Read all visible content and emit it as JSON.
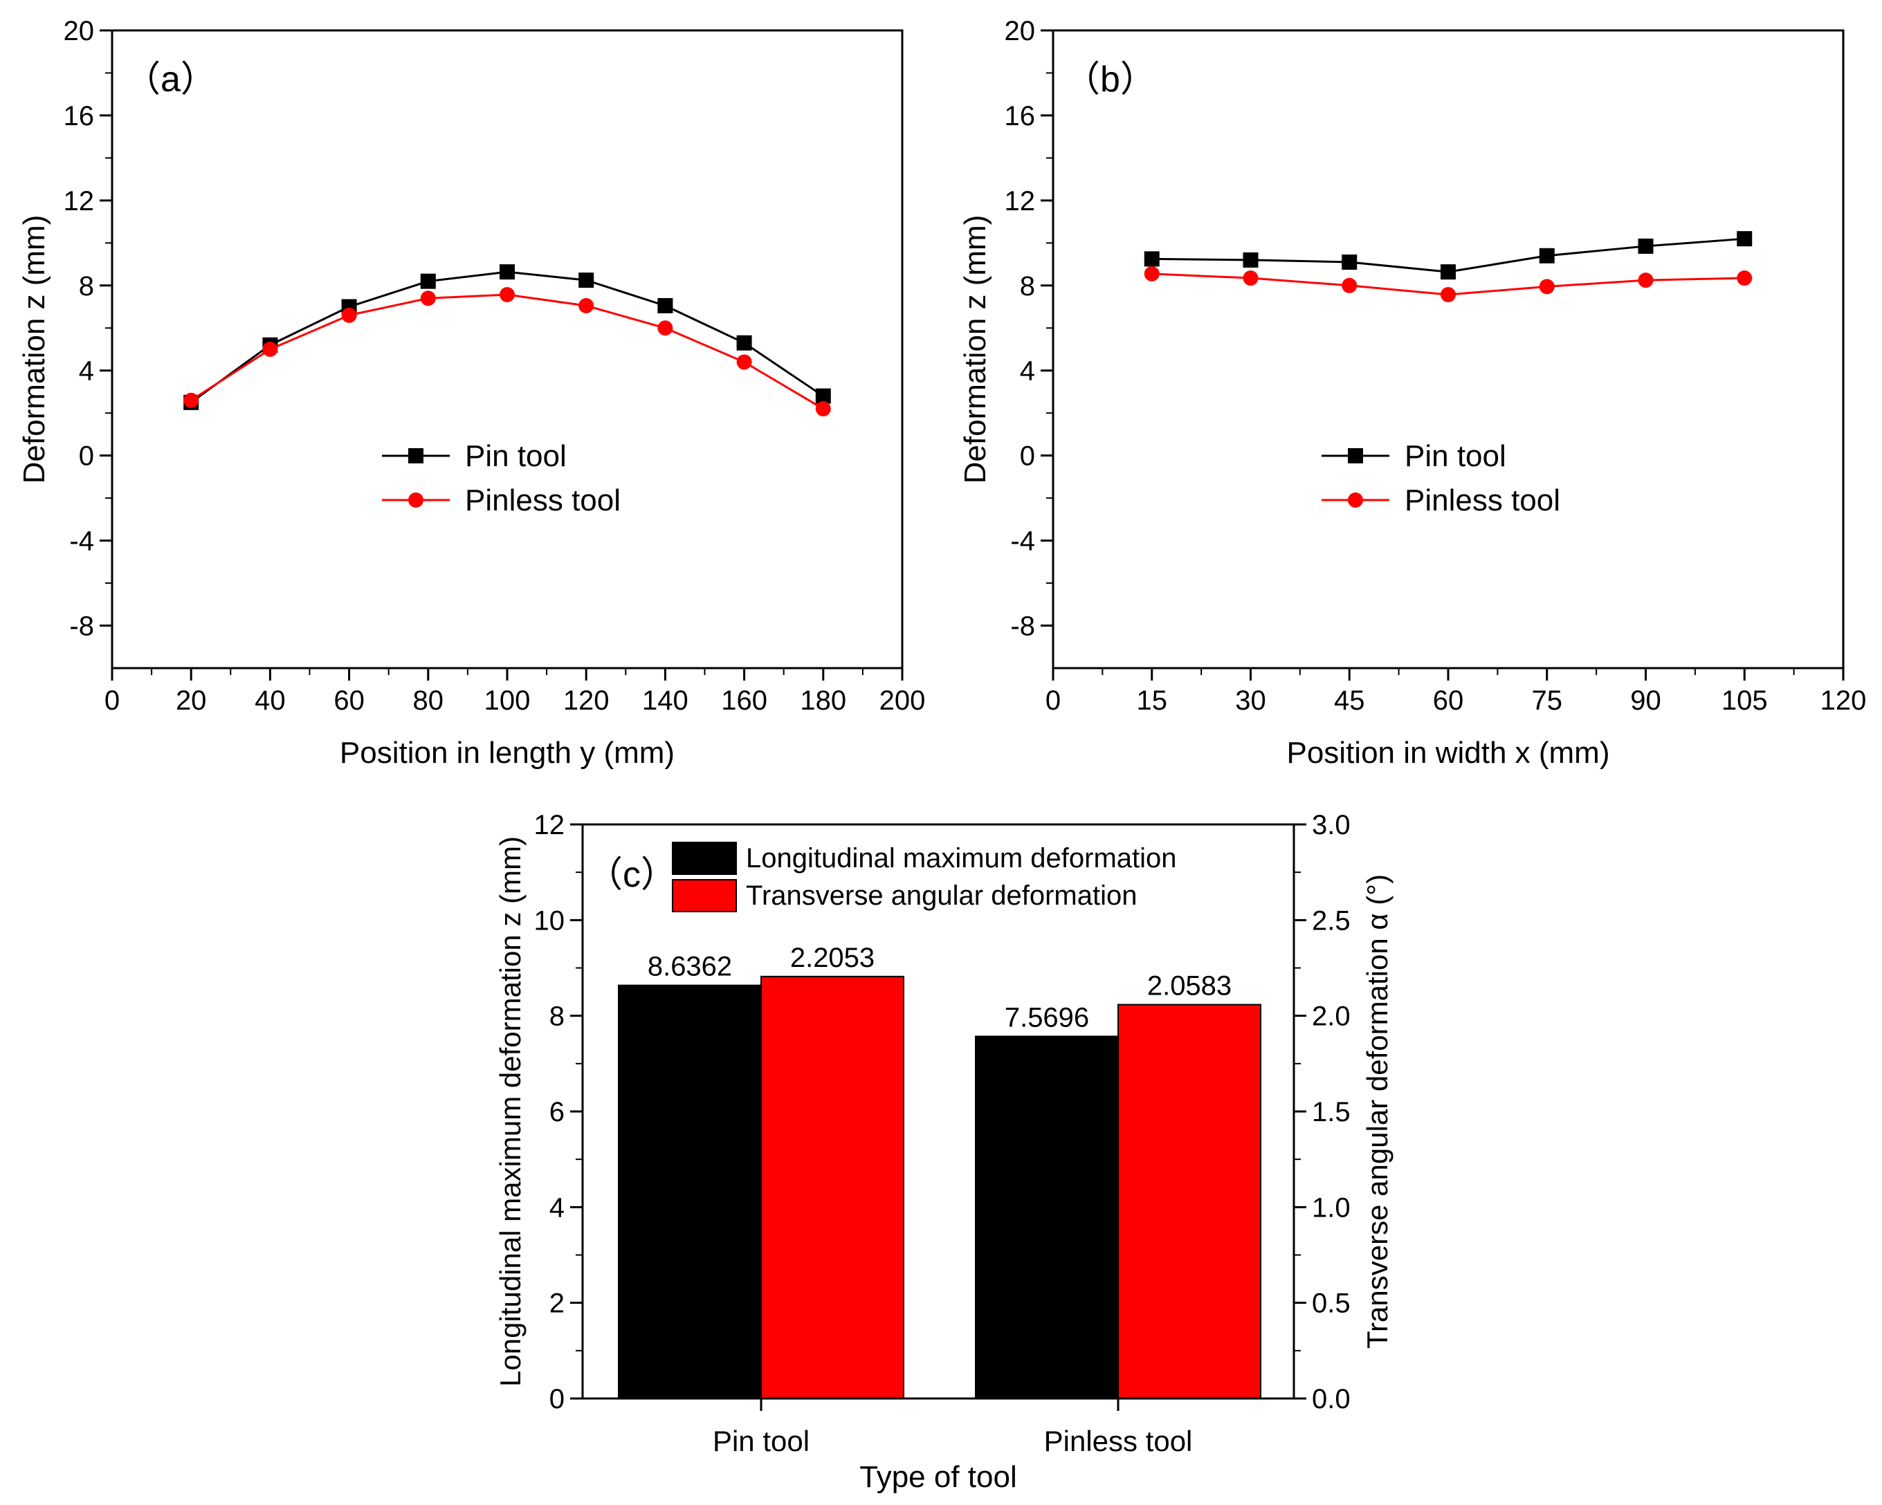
{
  "colors": {
    "pin": "#000000",
    "pinless": "#ff0000",
    "axis": "#000000",
    "background": "#ffffff"
  },
  "chart_data": [
    {
      "id": "a",
      "type": "line",
      "panel_label": "（a）",
      "xlabel": "Position in length y (mm)",
      "ylabel": "Deformation z (mm)",
      "xlim": [
        0,
        200
      ],
      "ylim": [
        -10,
        20
      ],
      "xticks": [
        "0",
        "20",
        "40",
        "60",
        "80",
        "100",
        "120",
        "140",
        "160",
        "180",
        "200"
      ],
      "yticks": [
        "-8",
        "-4",
        "0",
        "4",
        "8",
        "12",
        "16",
        "20"
      ],
      "legend_position": "center",
      "x": [
        20,
        40,
        60,
        80,
        100,
        120,
        140,
        160,
        180
      ],
      "series": [
        {
          "name": "Pin tool",
          "marker": "square",
          "values": [
            2.5,
            5.2,
            7.0,
            8.2,
            8.64,
            8.25,
            7.05,
            5.3,
            2.8
          ]
        },
        {
          "name": "Pinless tool",
          "marker": "circle",
          "values": [
            2.6,
            5.0,
            6.6,
            7.4,
            7.57,
            7.05,
            6.0,
            4.4,
            2.2
          ]
        }
      ]
    },
    {
      "id": "b",
      "type": "line",
      "panel_label": "（b）",
      "xlabel": "Position in width x (mm)",
      "ylabel": "Deformation z (mm)",
      "xlim": [
        0,
        120
      ],
      "ylim": [
        -10,
        20
      ],
      "xticks": [
        "0",
        "15",
        "30",
        "45",
        "60",
        "75",
        "90",
        "105",
        "120"
      ],
      "yticks": [
        "-8",
        "-4",
        "0",
        "4",
        "8",
        "12",
        "16",
        "20"
      ],
      "legend_position": "center",
      "x": [
        15,
        30,
        45,
        60,
        75,
        90,
        105
      ],
      "series": [
        {
          "name": "Pin tool",
          "marker": "square",
          "values": [
            9.25,
            9.2,
            9.1,
            8.64,
            9.4,
            9.85,
            10.2
          ]
        },
        {
          "name": "Pinless tool",
          "marker": "circle",
          "values": [
            8.55,
            8.35,
            8.0,
            7.57,
            7.95,
            8.25,
            8.35
          ]
        }
      ]
    },
    {
      "id": "c",
      "type": "bar",
      "panel_label": "（c）",
      "xlabel": "Type of tool",
      "ylabel": "Longitudinal maximum deformation z (mm)",
      "ylabel_right": "Transverse angular deformation α (°)",
      "categories": [
        "Pin tool",
        "Pinless tool"
      ],
      "ylim": [
        0,
        12
      ],
      "ylim_right": [
        0,
        3
      ],
      "yticks": [
        "0",
        "2",
        "4",
        "6",
        "8",
        "10",
        "12"
      ],
      "yticks_right": [
        "0.0",
        "0.5",
        "1.0",
        "1.5",
        "2.0",
        "2.5",
        "3.0"
      ],
      "legend_position": "top-right",
      "series": [
        {
          "name": "Longitudinal maximum deformation",
          "axis": "left",
          "values": [
            8.6362,
            7.5696
          ],
          "labels": [
            "8.6362",
            "7.5696"
          ]
        },
        {
          "name": "Transverse angular deformation",
          "axis": "right",
          "values": [
            2.2053,
            2.0583
          ],
          "labels": [
            "2.2053",
            "2.0583"
          ]
        }
      ]
    }
  ]
}
